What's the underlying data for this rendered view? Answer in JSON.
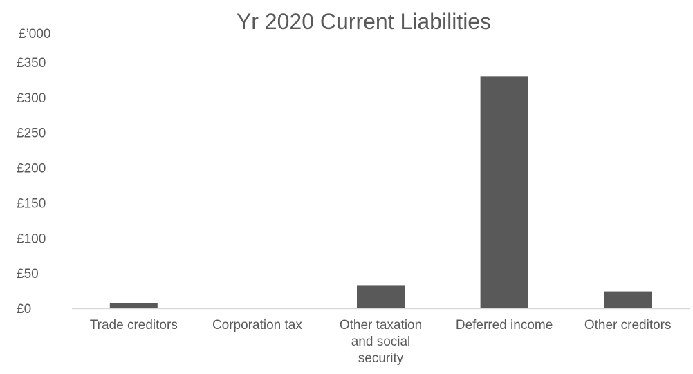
{
  "chart_data": {
    "type": "bar",
    "title": "Yr 2020 Current Liabilities",
    "unit_label": "£’000",
    "xlabel": "",
    "ylabel": "",
    "categories": [
      [
        "Trade creditors"
      ],
      [
        "Corporation tax"
      ],
      [
        "Other taxation",
        "and social",
        "security"
      ],
      [
        "Deferred income"
      ],
      [
        "Other creditors"
      ]
    ],
    "values": [
      7,
      0,
      33,
      330,
      24
    ],
    "ylim": [
      0,
      350
    ],
    "yticks": [
      0,
      50,
      100,
      150,
      200,
      250,
      300,
      350
    ],
    "ytick_labels": [
      "£0",
      "£50",
      "£100",
      "£150",
      "£200",
      "£250",
      "£300",
      "£350"
    ],
    "grid": false,
    "legend": "none",
    "bar_color": "#595959",
    "axis_color": "#d9d9d9",
    "text_color": "#595959"
  }
}
